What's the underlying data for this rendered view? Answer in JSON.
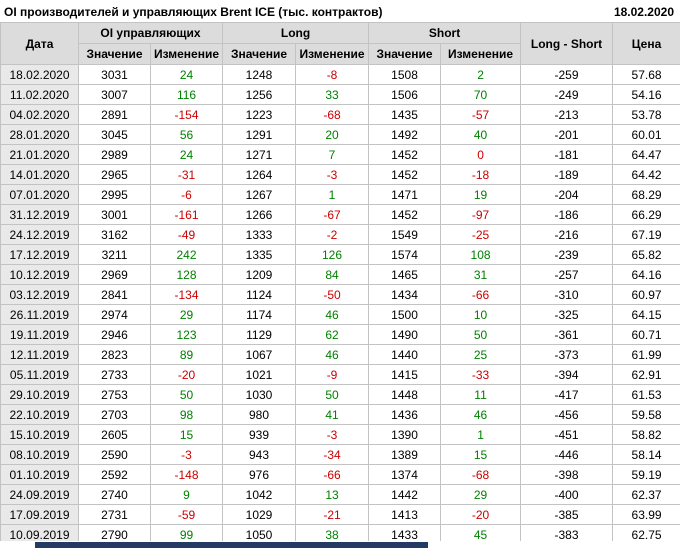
{
  "title": "OI производителей и управляющих Brent ICE (тыс. контрактов)",
  "report_date": "18.02.2020",
  "colors": {
    "positive": "#008000",
    "negative": "#cc0000"
  },
  "headers": {
    "date": "Дата",
    "oi": "OI управляющих",
    "long": "Long",
    "short": "Short",
    "value": "Значение",
    "change": "Изменение",
    "long_short": "Long - Short",
    "price": "Цена"
  },
  "chart_data": {
    "type": "table",
    "title": "OI производителей и управляющих Brent ICE (тыс. контрактов)",
    "columns": [
      "Дата",
      "OI управляющих Значение",
      "OI управляющих Изменение",
      "Long Значение",
      "Long Изменение",
      "Short Значение",
      "Short Изменение",
      "Long - Short",
      "Цена"
    ],
    "rows": [
      [
        "18.02.2020",
        "3031",
        "24",
        "1248",
        "-8",
        "1508",
        "2",
        "-259",
        "57.68"
      ],
      [
        "11.02.2020",
        "3007",
        "116",
        "1256",
        "33",
        "1506",
        "70",
        "-249",
        "54.16"
      ],
      [
        "04.02.2020",
        "2891",
        "-154",
        "1223",
        "-68",
        "1435",
        "-57",
        "-213",
        "53.78"
      ],
      [
        "28.01.2020",
        "3045",
        "56",
        "1291",
        "20",
        "1492",
        "40",
        "-201",
        "60.01"
      ],
      [
        "21.01.2020",
        "2989",
        "24",
        "1271",
        "7",
        "1452",
        "0",
        "-181",
        "64.47"
      ],
      [
        "14.01.2020",
        "2965",
        "-31",
        "1264",
        "-3",
        "1452",
        "-18",
        "-189",
        "64.42"
      ],
      [
        "07.01.2020",
        "2995",
        "-6",
        "1267",
        "1",
        "1471",
        "19",
        "-204",
        "68.29"
      ],
      [
        "31.12.2019",
        "3001",
        "-161",
        "1266",
        "-67",
        "1452",
        "-97",
        "-186",
        "66.29"
      ],
      [
        "24.12.2019",
        "3162",
        "-49",
        "1333",
        "-2",
        "1549",
        "-25",
        "-216",
        "67.19"
      ],
      [
        "17.12.2019",
        "3211",
        "242",
        "1335",
        "126",
        "1574",
        "108",
        "-239",
        "65.82"
      ],
      [
        "10.12.2019",
        "2969",
        "128",
        "1209",
        "84",
        "1465",
        "31",
        "-257",
        "64.16"
      ],
      [
        "03.12.2019",
        "2841",
        "-134",
        "1124",
        "-50",
        "1434",
        "-66",
        "-310",
        "60.97"
      ],
      [
        "26.11.2019",
        "2974",
        "29",
        "1174",
        "46",
        "1500",
        "10",
        "-325",
        "64.15"
      ],
      [
        "19.11.2019",
        "2946",
        "123",
        "1129",
        "62",
        "1490",
        "50",
        "-361",
        "60.71"
      ],
      [
        "12.11.2019",
        "2823",
        "89",
        "1067",
        "46",
        "1440",
        "25",
        "-373",
        "61.99"
      ],
      [
        "05.11.2019",
        "2733",
        "-20",
        "1021",
        "-9",
        "1415",
        "-33",
        "-394",
        "62.91"
      ],
      [
        "29.10.2019",
        "2753",
        "50",
        "1030",
        "50",
        "1448",
        "11",
        "-417",
        "61.53"
      ],
      [
        "22.10.2019",
        "2703",
        "98",
        "980",
        "41",
        "1436",
        "46",
        "-456",
        "59.58"
      ],
      [
        "15.10.2019",
        "2605",
        "15",
        "939",
        "-3",
        "1390",
        "1",
        "-451",
        "58.82"
      ],
      [
        "08.10.2019",
        "2590",
        "-3",
        "943",
        "-34",
        "1389",
        "15",
        "-446",
        "58.14"
      ],
      [
        "01.10.2019",
        "2592",
        "-148",
        "976",
        "-66",
        "1374",
        "-68",
        "-398",
        "59.19"
      ],
      [
        "24.09.2019",
        "2740",
        "9",
        "1042",
        "13",
        "1442",
        "29",
        "-400",
        "62.37"
      ],
      [
        "17.09.2019",
        "2731",
        "-59",
        "1029",
        "-21",
        "1413",
        "-20",
        "-385",
        "63.99"
      ],
      [
        "10.09.2019",
        "2790",
        "99",
        "1050",
        "38",
        "1433",
        "45",
        "-383",
        "62.75"
      ]
    ]
  }
}
